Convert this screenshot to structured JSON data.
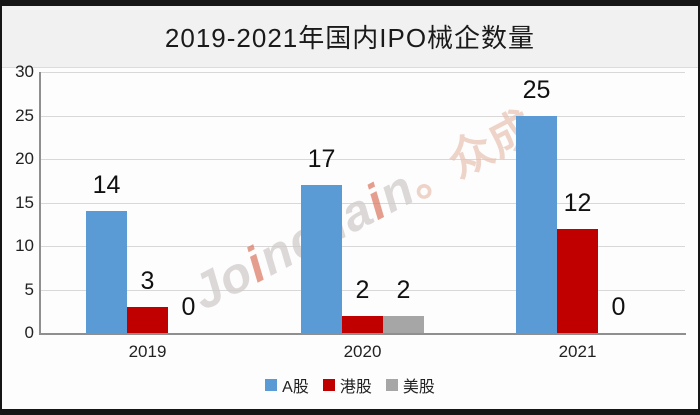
{
  "chart_data": {
    "type": "bar",
    "title": "2019-2021年国内IPO械企数量",
    "categories": [
      "2019",
      "2020",
      "2021"
    ],
    "series": [
      {
        "name": "A股",
        "color": "#5B9BD5",
        "values": [
          14,
          17,
          25
        ]
      },
      {
        "name": "港股",
        "color": "#C00000",
        "values": [
          3,
          2,
          12
        ]
      },
      {
        "name": "美股",
        "color": "#A6A6A6",
        "values": [
          0,
          2,
          0
        ]
      }
    ],
    "ylim": [
      0,
      30
    ],
    "yticks": [
      0,
      5,
      10,
      15,
      20,
      25,
      30
    ],
    "grid": true,
    "legend_position": "bottom",
    "value_labels": true
  },
  "watermark": {
    "pre": "Jo",
    "i1": "i",
    "mid": "ncha",
    "i2": "i",
    "end": "n",
    "cjk": "。众成"
  },
  "palette": {
    "frame_edge": "#161616",
    "title_band": "#f1f1f1",
    "gridline": "#d8d8d8",
    "axis": "#8f8f8f",
    "watermark_latin": "#cfcbc9",
    "watermark_accent": "#dd7a64",
    "watermark_cjk": "#e9c3b4"
  }
}
